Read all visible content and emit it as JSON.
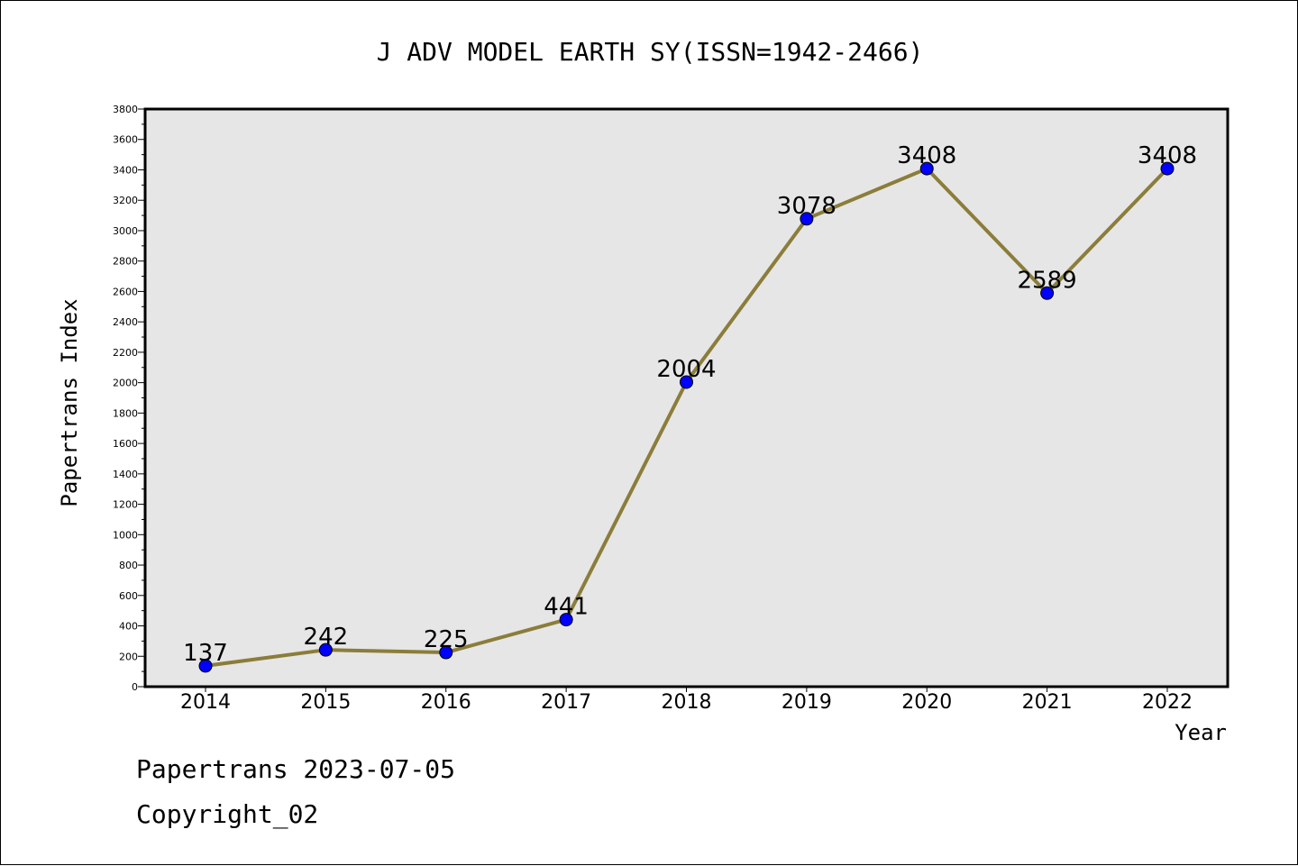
{
  "chart_data": {
    "type": "line",
    "title": "J ADV MODEL EARTH SY(ISSN=1942-2466)",
    "xlabel": "Year",
    "ylabel": "Papertrans Index",
    "categories": [
      "2014",
      "2015",
      "2016",
      "2017",
      "2018",
      "2019",
      "2020",
      "2021",
      "2022"
    ],
    "series": [
      {
        "values": [
          137,
          242,
          225,
          441,
          2004,
          3078,
          3408,
          2589,
          3408
        ]
      }
    ],
    "data_labels": [
      "137",
      "242",
      "225",
      "441",
      "2004",
      "3078",
      "3408",
      "2589",
      "3408"
    ],
    "ylim": [
      0,
      3800
    ],
    "yticks": [
      "0",
      "200",
      "400",
      "600",
      "800",
      "1000",
      "1200",
      "1400",
      "1600",
      "1800",
      "2000",
      "2200",
      "2400",
      "2600",
      "2800",
      "3000",
      "3200",
      "3400",
      "3600",
      "3800"
    ],
    "grid": false,
    "legend": "none",
    "colors": {
      "line": "#8B7D3A",
      "marker": "#0000FF",
      "plot_background": "#E6E6E6"
    }
  },
  "footer": {
    "line1": "Papertrans 2023-07-05",
    "line2": "Copyright_02"
  }
}
